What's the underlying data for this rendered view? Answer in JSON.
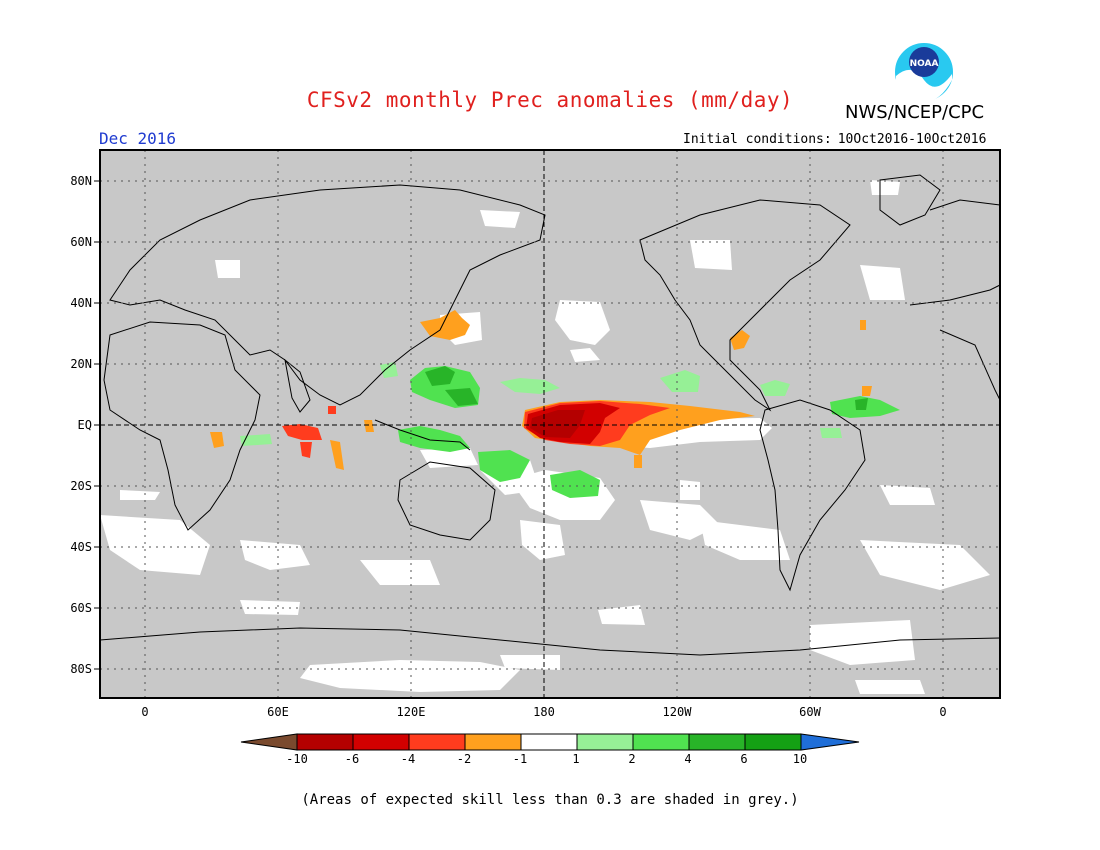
{
  "title": "CFSv2 monthly Prec anomalies (mm/day)",
  "org": "NWS/NCEP/CPC",
  "logo_text": "NOAA",
  "valid_month": "Dec 2016",
  "initial_conditions": {
    "label": "Initial conditions:",
    "value": "10Oct2016-10Oct2016"
  },
  "map": {
    "lat_labels": [
      "80N",
      "60N",
      "40N",
      "20N",
      "EQ",
      "20S",
      "40S",
      "60S",
      "80S"
    ],
    "lon_labels": [
      "0",
      "60E",
      "120E",
      "180",
      "120W",
      "60W",
      "0"
    ],
    "background_color": "#c8c8c8",
    "skill_mask_color": "#ffffff"
  },
  "colorbar": {
    "ticks": [
      "-10",
      "-6",
      "-4",
      "-2",
      "-1",
      "1",
      "2",
      "4",
      "6",
      "10"
    ],
    "colors": [
      "#7a4a2e",
      "#b40000",
      "#d20000",
      "#ff3c1e",
      "#ffa01e",
      "#ffffff",
      "#96f096",
      "#50e250",
      "#28b428",
      "#14a014",
      "#1f6ed8"
    ]
  },
  "footnote": "(Areas of expected skill less than 0.3 are shaded in grey.)"
}
